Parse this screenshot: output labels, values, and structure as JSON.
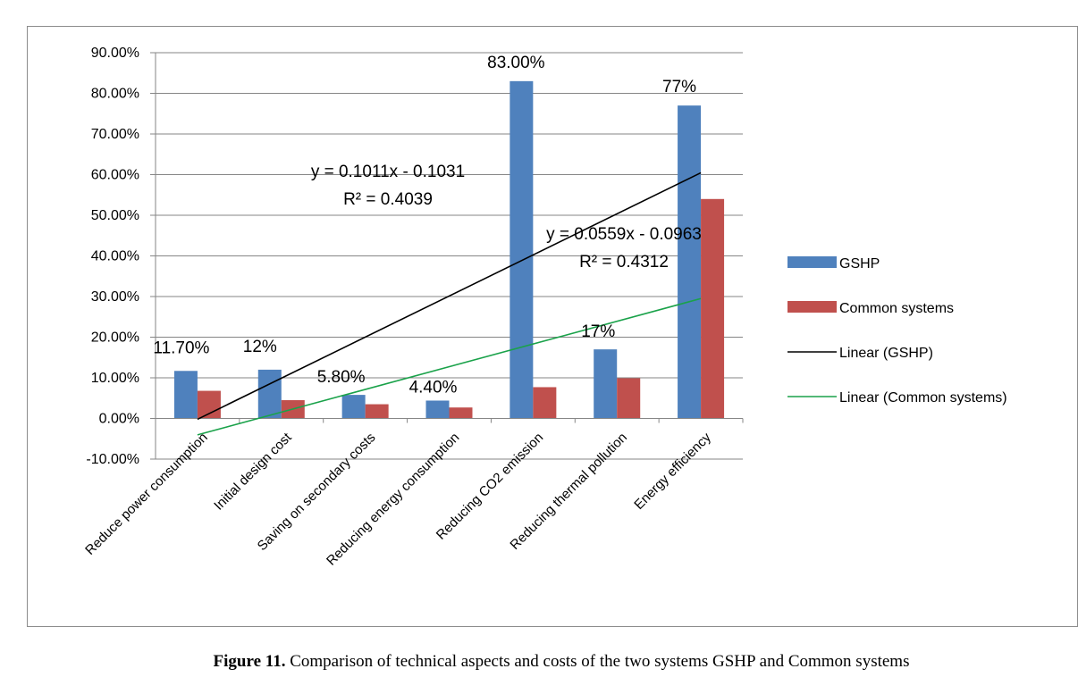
{
  "chart_data": {
    "type": "bar",
    "title": "",
    "xlabel": "",
    "ylabel": "",
    "ylim": [
      -0.1,
      0.9
    ],
    "y_ticks": [
      -0.1,
      0.0,
      0.1,
      0.2,
      0.3,
      0.4,
      0.5,
      0.6,
      0.7,
      0.8,
      0.9
    ],
    "y_tick_labels": [
      "-10.00%",
      "0.00%",
      "10.00%",
      "20.00%",
      "30.00%",
      "40.00%",
      "50.00%",
      "60.00%",
      "70.00%",
      "80.00%",
      "90.00%"
    ],
    "grid": "horizontal",
    "legend_position": "right",
    "categories": [
      "Reduce power consumption",
      "Initial design cost",
      "Saving on secondary costs",
      "Reducing energy consumption",
      "Reducing CO2 emission",
      "Reducing thermal pollution",
      "Energy efficiency"
    ],
    "series": [
      {
        "name": "GSHP",
        "color": "#4f81bd",
        "values": [
          0.117,
          0.12,
          0.058,
          0.044,
          0.83,
          0.17,
          0.77
        ],
        "data_labels": [
          "11.70%",
          "12%",
          "5.80%",
          "4.40%",
          "83.00%",
          "17%",
          "77%"
        ]
      },
      {
        "name": "Common systems",
        "color": "#c0504d",
        "values": [
          0.068,
          0.045,
          0.035,
          0.027,
          0.077,
          0.099,
          0.54
        ]
      }
    ],
    "trendlines": [
      {
        "name": "Linear (GSHP)",
        "color": "#000000",
        "slope": 0.1011,
        "intercept": -0.1031,
        "equation": "y = 0.1011x - 0.1031",
        "r2": "R² = 0.4039"
      },
      {
        "name": "Linear (Common systems)",
        "color": "#1aa24a",
        "slope": 0.0559,
        "intercept": -0.0963,
        "equation": "y = 0.0559x - 0.0963",
        "r2": "R² = 0.4312"
      }
    ]
  },
  "caption": {
    "figure_number": "Figure 11.",
    "text": "Comparison of technical aspects and costs of the two systems GSHP and Common systems"
  }
}
